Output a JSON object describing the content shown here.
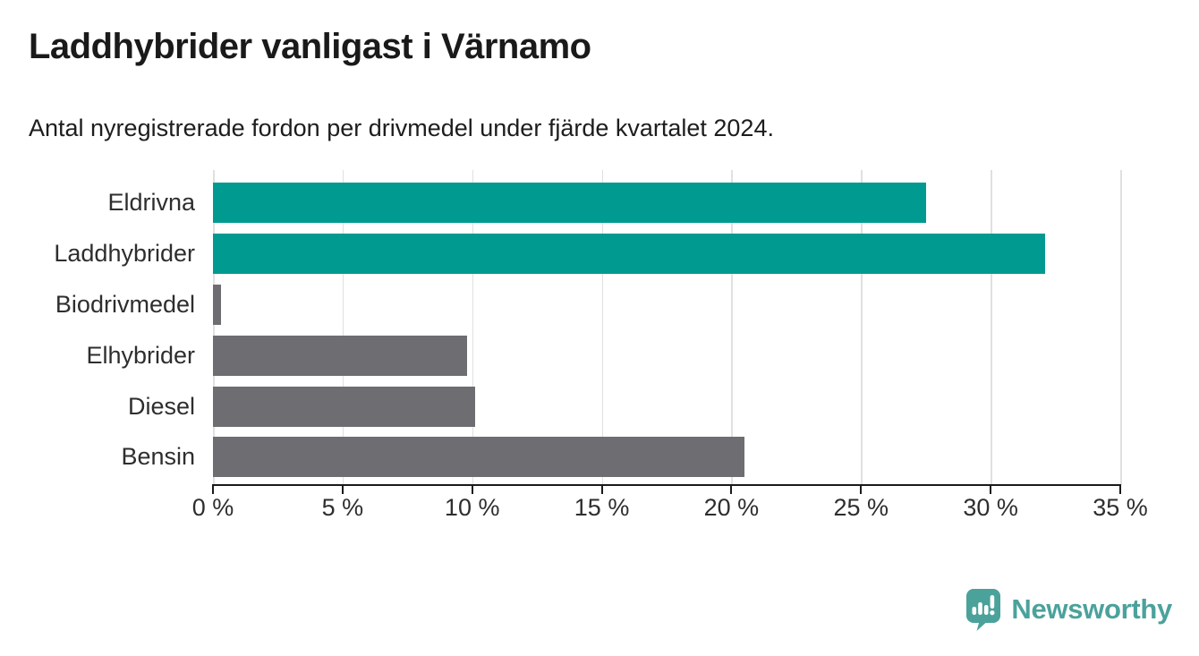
{
  "header": {
    "title": "Laddhybrider vanligast i Värnamo",
    "subtitle": "Antal nyregistrerade fordon per drivmedel under fjärde kvartalet 2024."
  },
  "chart_data": {
    "type": "bar",
    "orientation": "horizontal",
    "title": "Laddhybrider vanligast i Värnamo",
    "subtitle": "Antal nyregistrerade fordon per drivmedel under fjärde kvartalet 2024.",
    "categories": [
      "Eldrivna",
      "Laddhybrider",
      "Biodrivmedel",
      "Elhybrider",
      "Diesel",
      "Bensin"
    ],
    "values": [
      27.5,
      32.1,
      0.3,
      9.8,
      10.1,
      20.5
    ],
    "unit": "%",
    "bar_colors": [
      "#009a91",
      "#009a91",
      "#6d6d72",
      "#6d6d72",
      "#6d6d72",
      "#6d6d72"
    ],
    "xlim": [
      0,
      35
    ],
    "x_ticks": [
      0,
      5,
      10,
      15,
      20,
      25,
      30,
      35
    ],
    "x_tick_labels": [
      "0 %",
      "5 %",
      "10 %",
      "15 %",
      "20 %",
      "25 %",
      "30 %",
      "35 %"
    ],
    "grid": "vertical-gridlines-on",
    "legend": "none"
  },
  "colors": {
    "highlight_bar": "#009a91",
    "default_bar": "#6d6d72",
    "gridline": "#e0e0e0",
    "axis": "#1a1a1a",
    "brand_teal": "#4ba29b"
  },
  "footer": {
    "brand": "Newsworthy"
  }
}
